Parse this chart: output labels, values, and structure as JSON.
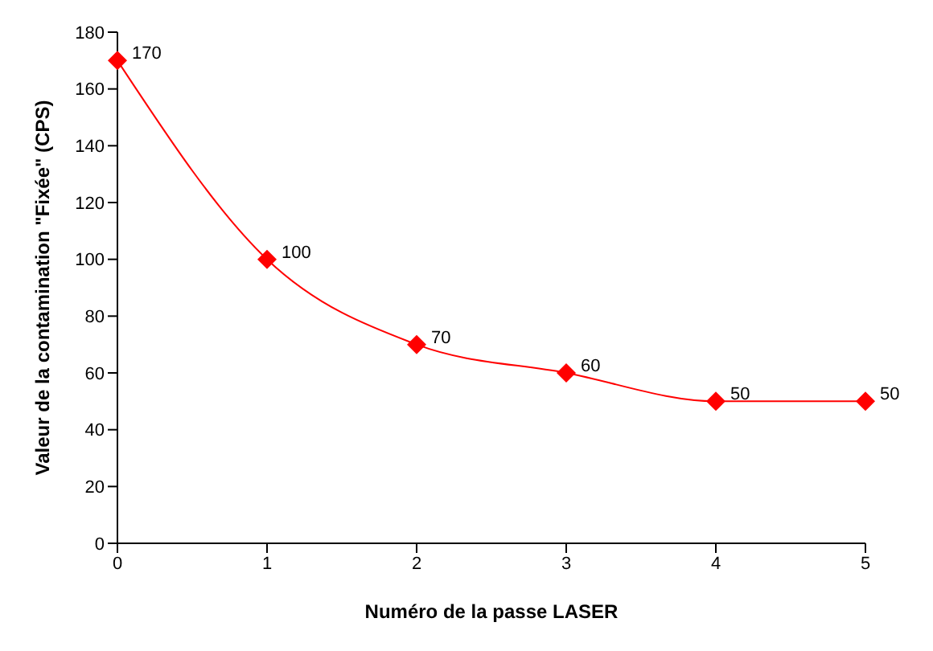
{
  "chart_data": {
    "type": "line",
    "xlabel": "Numéro de la passe LASER",
    "ylabel": "Valeur de la contamination \"Fixée\" (CPS)",
    "categories": [
      "0",
      "1",
      "2",
      "3",
      "4",
      "5"
    ],
    "series": [
      {
        "color": "#ff0000",
        "values": [
          170,
          100,
          70,
          60,
          50,
          50
        ]
      }
    ],
    "ylim": [
      0,
      180
    ],
    "yticks": [
      0,
      20,
      40,
      60,
      80,
      100,
      120,
      140,
      160,
      180
    ],
    "marker": "diamond",
    "line_style": "solid",
    "data_labels": true
  }
}
